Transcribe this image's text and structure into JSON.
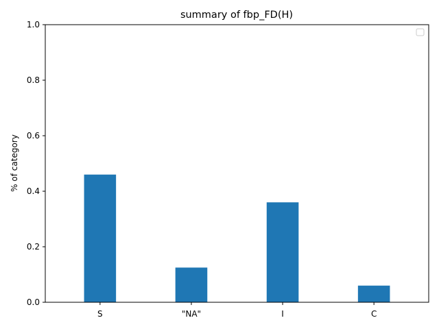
{
  "chart_data": {
    "type": "bar",
    "title": "summary of fbp_FD(H)",
    "xlabel": "",
    "ylabel": "% of category",
    "categories": [
      "S",
      "\"NA\"",
      "I",
      "C"
    ],
    "values": [
      0.46,
      0.125,
      0.36,
      0.06
    ],
    "ylim": [
      0,
      1.0
    ],
    "yticks": [
      "0.0",
      "0.2",
      "0.4",
      "0.6",
      "0.8",
      "1.0"
    ],
    "bar_color": "#1f77b4",
    "grid": false,
    "legend": {
      "position": "top-right",
      "entries": []
    }
  }
}
